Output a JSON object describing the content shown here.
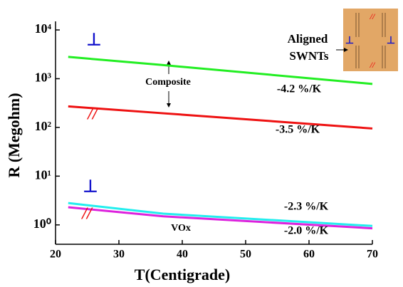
{
  "chart_data": {
    "type": "line",
    "x_label": "T(Centigrade)",
    "y_label": "R (Megohm)",
    "x": [
      22,
      37,
      70
    ],
    "series": [
      {
        "color": "#22ee22",
        "values": [
          2800,
          1900,
          780
        ]
      },
      {
        "color": "#ee1111",
        "values": [
          270,
          195,
          95
        ]
      },
      {
        "color": "#22eeee",
        "values": [
          2.8,
          1.7,
          0.95
        ]
      },
      {
        "color": "#dd22dd",
        "values": [
          2.3,
          1.5,
          0.85
        ]
      }
    ],
    "xlim": [
      20,
      70
    ],
    "xticks": [
      20,
      30,
      40,
      50,
      60,
      70
    ],
    "ylim": [
      0.4,
      15000
    ],
    "log_y": true,
    "yticks": [
      {
        "value": 1,
        "label": "10⁰"
      },
      {
        "value": 10,
        "label": "10¹"
      },
      {
        "value": 100,
        "label": "10²"
      },
      {
        "value": 1000,
        "label": "10³"
      },
      {
        "value": 10000,
        "label": "10⁴"
      }
    ],
    "annotations": [
      {
        "text": "⊥",
        "color": "#1111cc"
      },
      {
        "text": "//",
        "color": "#ee1111"
      },
      {
        "text": "Composite",
        "color": "#000000"
      },
      {
        "text": "-4.2 %/K",
        "color": "#000000"
      },
      {
        "text": "-3.5 %/K",
        "color": "#000000"
      },
      {
        "text": "⊥",
        "color": "#1111cc"
      },
      {
        "text": "//",
        "color": "#ee1111"
      },
      {
        "text": "-2.3 %/K",
        "color": "#000000"
      },
      {
        "text": "VOx",
        "color": "#000000"
      },
      {
        "text": "-2.0 %/K",
        "color": "#000000"
      },
      {
        "text": "Aligned",
        "color": "#000000"
      },
      {
        "text": "SWNTs",
        "color": "#000000"
      },
      {
        "text": "//",
        "color": "#ee1111"
      },
      {
        "text": "⊥",
        "color": "#1111cc"
      },
      {
        "text": "⊥",
        "color": "#1111cc"
      },
      {
        "text": "//",
        "color": "#ee1111"
      }
    ]
  }
}
